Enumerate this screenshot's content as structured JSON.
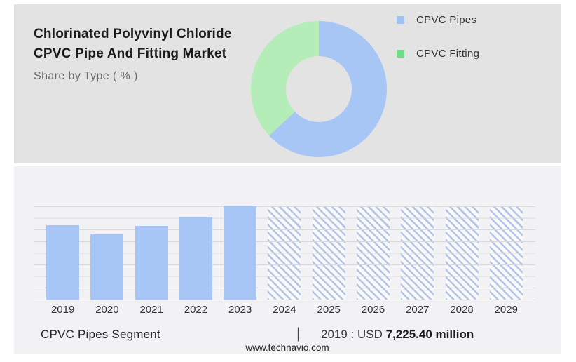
{
  "header": {
    "title_line1": "Chlorinated Polyvinyl Chloride",
    "title_line2": "CPVC Pipe And Fitting Market",
    "subtitle": "Share by Type ( % )"
  },
  "chart_data": [
    {
      "type": "pie",
      "subtype": "donut",
      "title": "Share by Type ( % )",
      "legend_position": "right",
      "donut_hole_ratio": 0.48,
      "slices": [
        {
          "label": "CPVC Pipes",
          "value_pct": 63,
          "color": "#a7c6f6"
        },
        {
          "label": "CPVC Fitting",
          "value_pct": 37,
          "color": "#b4edb8"
        }
      ],
      "legend": [
        {
          "label": "CPVC Pipes",
          "swatch_color": "#9fc2f5"
        },
        {
          "label": "CPVC Fitting",
          "swatch_color": "#6cdc88"
        }
      ]
    },
    {
      "type": "bar",
      "categories": [
        "2019",
        "2020",
        "2021",
        "2022",
        "2023",
        "2024",
        "2025",
        "2026",
        "2027",
        "2028",
        "2029"
      ],
      "heights_pct": [
        80,
        70,
        79,
        88,
        100,
        99,
        99,
        99,
        99,
        99,
        99
      ],
      "values_usd_million": [
        7225.4,
        6320,
        7130,
        7950,
        9030,
        null,
        null,
        null,
        null,
        null,
        null
      ],
      "forecast_from": "2024",
      "solid_color": "#a7c6f6",
      "hatch_line_color": "#b3c4e9",
      "gridlines": true,
      "note": "Only 2019 value labeled on image; 2020-2023 estimated from bar heights; 2024-2029 drawn as full-height hatched forecast placeholders"
    }
  ],
  "footer": {
    "segment_label": "CPVC Pipes Segment",
    "divider": "|",
    "value_prefix": "2019 : USD ",
    "value_bold": "7,225.40 million",
    "website": "www.technavio.com"
  }
}
